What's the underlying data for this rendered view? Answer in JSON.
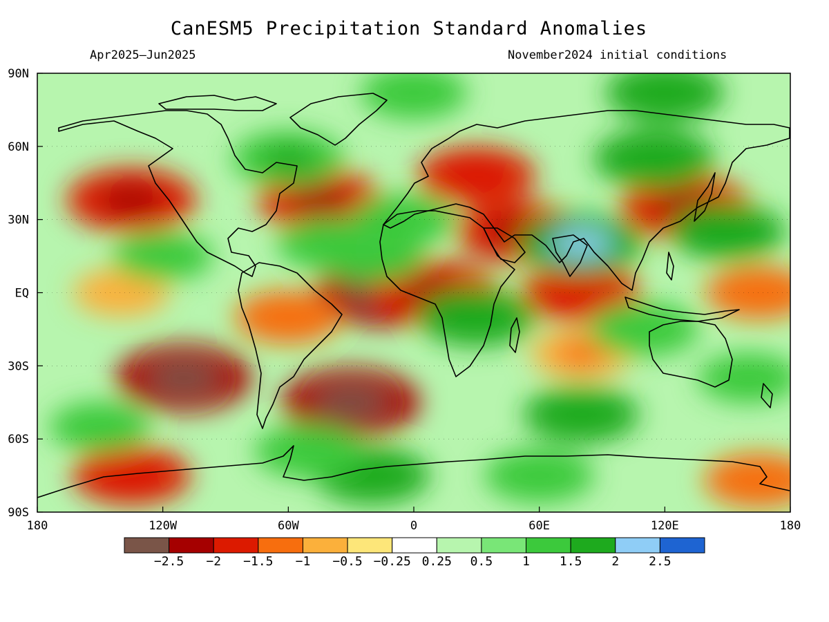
{
  "header": {
    "title": "CanESM5 Precipitation Standard Anomalies",
    "period": "Apr2025–Jun2025",
    "init": "November2024 initial conditions"
  },
  "map": {
    "lon_range": [
      -180,
      180
    ],
    "lat_range": [
      -90,
      90
    ],
    "x_ticks": [
      {
        "lon": -180,
        "label": "180"
      },
      {
        "lon": -120,
        "label": "120W"
      },
      {
        "lon": -60,
        "label": "60W"
      },
      {
        "lon": 0,
        "label": "0"
      },
      {
        "lon": 60,
        "label": "60E"
      },
      {
        "lon": 120,
        "label": "120E"
      },
      {
        "lon": 180,
        "label": "180"
      }
    ],
    "y_ticks": [
      {
        "lat": 90,
        "label": "90N"
      },
      {
        "lat": 60,
        "label": "60N"
      },
      {
        "lat": 30,
        "label": "30N"
      },
      {
        "lat": 0,
        "label": "EQ"
      },
      {
        "lat": -30,
        "label": "30S"
      },
      {
        "lat": -60,
        "label": "60S"
      },
      {
        "lat": -90,
        "label": "90S"
      }
    ],
    "anomaly_features": [
      {
        "lon": -135,
        "lat": 38,
        "value": -2.0
      },
      {
        "lon": -45,
        "lat": 38,
        "value": -1.8
      },
      {
        "lon": -15,
        "lat": 0,
        "value": -2.2
      },
      {
        "lon": 10,
        "lat": 0,
        "value": -2.0
      },
      {
        "lon": 30,
        "lat": 48,
        "value": -1.6
      },
      {
        "lon": 50,
        "lat": 25,
        "value": -1.8
      },
      {
        "lon": 130,
        "lat": 35,
        "value": -2.0
      },
      {
        "lon": -110,
        "lat": -35,
        "value": -2.2
      },
      {
        "lon": -30,
        "lat": -45,
        "value": -2.3
      },
      {
        "lon": 80,
        "lat": 0,
        "value": -1.6
      },
      {
        "lon": 165,
        "lat": 0,
        "value": -1.2
      },
      {
        "lon": -140,
        "lat": 0,
        "value": -0.8
      },
      {
        "lon": -135,
        "lat": -75,
        "value": -1.6
      },
      {
        "lon": 165,
        "lat": -77,
        "value": -1.3
      },
      {
        "lon": -60,
        "lat": -10,
        "value": -1.2
      },
      {
        "lon": 80,
        "lat": -25,
        "value": -1.0
      },
      {
        "lon": 80,
        "lat": 20,
        "value": 1.8
      },
      {
        "lon": 115,
        "lat": 55,
        "value": 1.7
      },
      {
        "lon": 30,
        "lat": -10,
        "value": 1.6
      },
      {
        "lon": 150,
        "lat": 25,
        "value": 1.5
      },
      {
        "lon": -20,
        "lat": 15,
        "value": 1.2
      },
      {
        "lon": -20,
        "lat": -75,
        "value": 1.5
      },
      {
        "lon": 60,
        "lat": -75,
        "value": 1.3
      },
      {
        "lon": -60,
        "lat": 55,
        "value": 1.4
      },
      {
        "lon": -40,
        "lat": 20,
        "value": 1.2
      },
      {
        "lon": 110,
        "lat": -15,
        "value": 1.3
      },
      {
        "lon": -120,
        "lat": 15,
        "value": 1.0
      },
      {
        "lon": -50,
        "lat": -65,
        "value": 1.3
      },
      {
        "lon": 80,
        "lat": -50,
        "value": 1.5
      },
      {
        "lon": 0,
        "lat": 82,
        "value": 1.2
      },
      {
        "lon": 120,
        "lat": 82,
        "value": 1.6
      },
      {
        "lon": -150,
        "lat": -55,
        "value": 1.0
      },
      {
        "lon": 160,
        "lat": -35,
        "value": 1.0
      },
      {
        "lon": -5,
        "lat": 30,
        "value": 1.1
      }
    ]
  },
  "colorbar": {
    "colors": [
      "#7a5548",
      "#a50000",
      "#dc1a00",
      "#f76e0e",
      "#fbb03b",
      "#fde679",
      "#ffffff",
      "#b7f5ae",
      "#79e677",
      "#3cc93c",
      "#1eaa1e",
      "#8fcdf6",
      "#1e64d2"
    ],
    "boundaries": [
      -3,
      -2.5,
      -2,
      -1.5,
      -1,
      -0.5,
      -0.25,
      0.25,
      0.5,
      1,
      1.5,
      2,
      2.5,
      3
    ],
    "labels": [
      "−2.5",
      "−2",
      "−1.5",
      "−1",
      "−0.5",
      "−0.25",
      "0.25",
      "0.5",
      "1",
      "1.5",
      "2",
      "2.5"
    ]
  }
}
